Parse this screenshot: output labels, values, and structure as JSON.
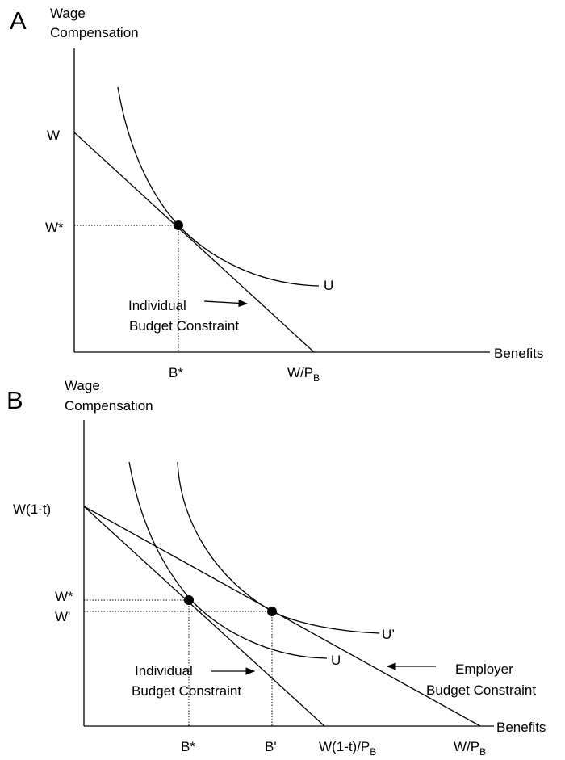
{
  "panel_a": {
    "letter": "A",
    "y_axis_label_line1": "Wage",
    "y_axis_label_line2": "Compensation",
    "x_axis_label": "Benefits",
    "y_label_w": "W",
    "y_label_w_star": "W*",
    "x_label_b_star": "B*",
    "x_label_w_over_pb": "W/P",
    "x_label_w_over_pb_sub": "B",
    "curve_label_u": "U",
    "budget_label_line1": "Individual",
    "budget_label_line2": "Budget Constraint"
  },
  "panel_b": {
    "letter": "B",
    "y_axis_label_line1": "Wage",
    "y_axis_label_line2": "Compensation",
    "x_axis_label": "Benefits",
    "y_label_w1t": "W(1-t)",
    "y_label_w_star": "W*",
    "y_label_w_prime": "W'",
    "x_label_b_star": "B*",
    "x_label_b_prime": "B'",
    "x_label_w1t_over_pb": "W(1-t)/P",
    "x_label_w1t_over_pb_sub": "B",
    "x_label_w_over_pb": "W/P",
    "x_label_w_over_pb_sub": "B",
    "curve_label_u": "U",
    "curve_label_u_prime": "U’",
    "individual_label_line1": "Individual",
    "individual_label_line2": "Budget Constraint",
    "employer_label_line1": "Employer",
    "employer_label_line2": "Budget Constraint"
  }
}
